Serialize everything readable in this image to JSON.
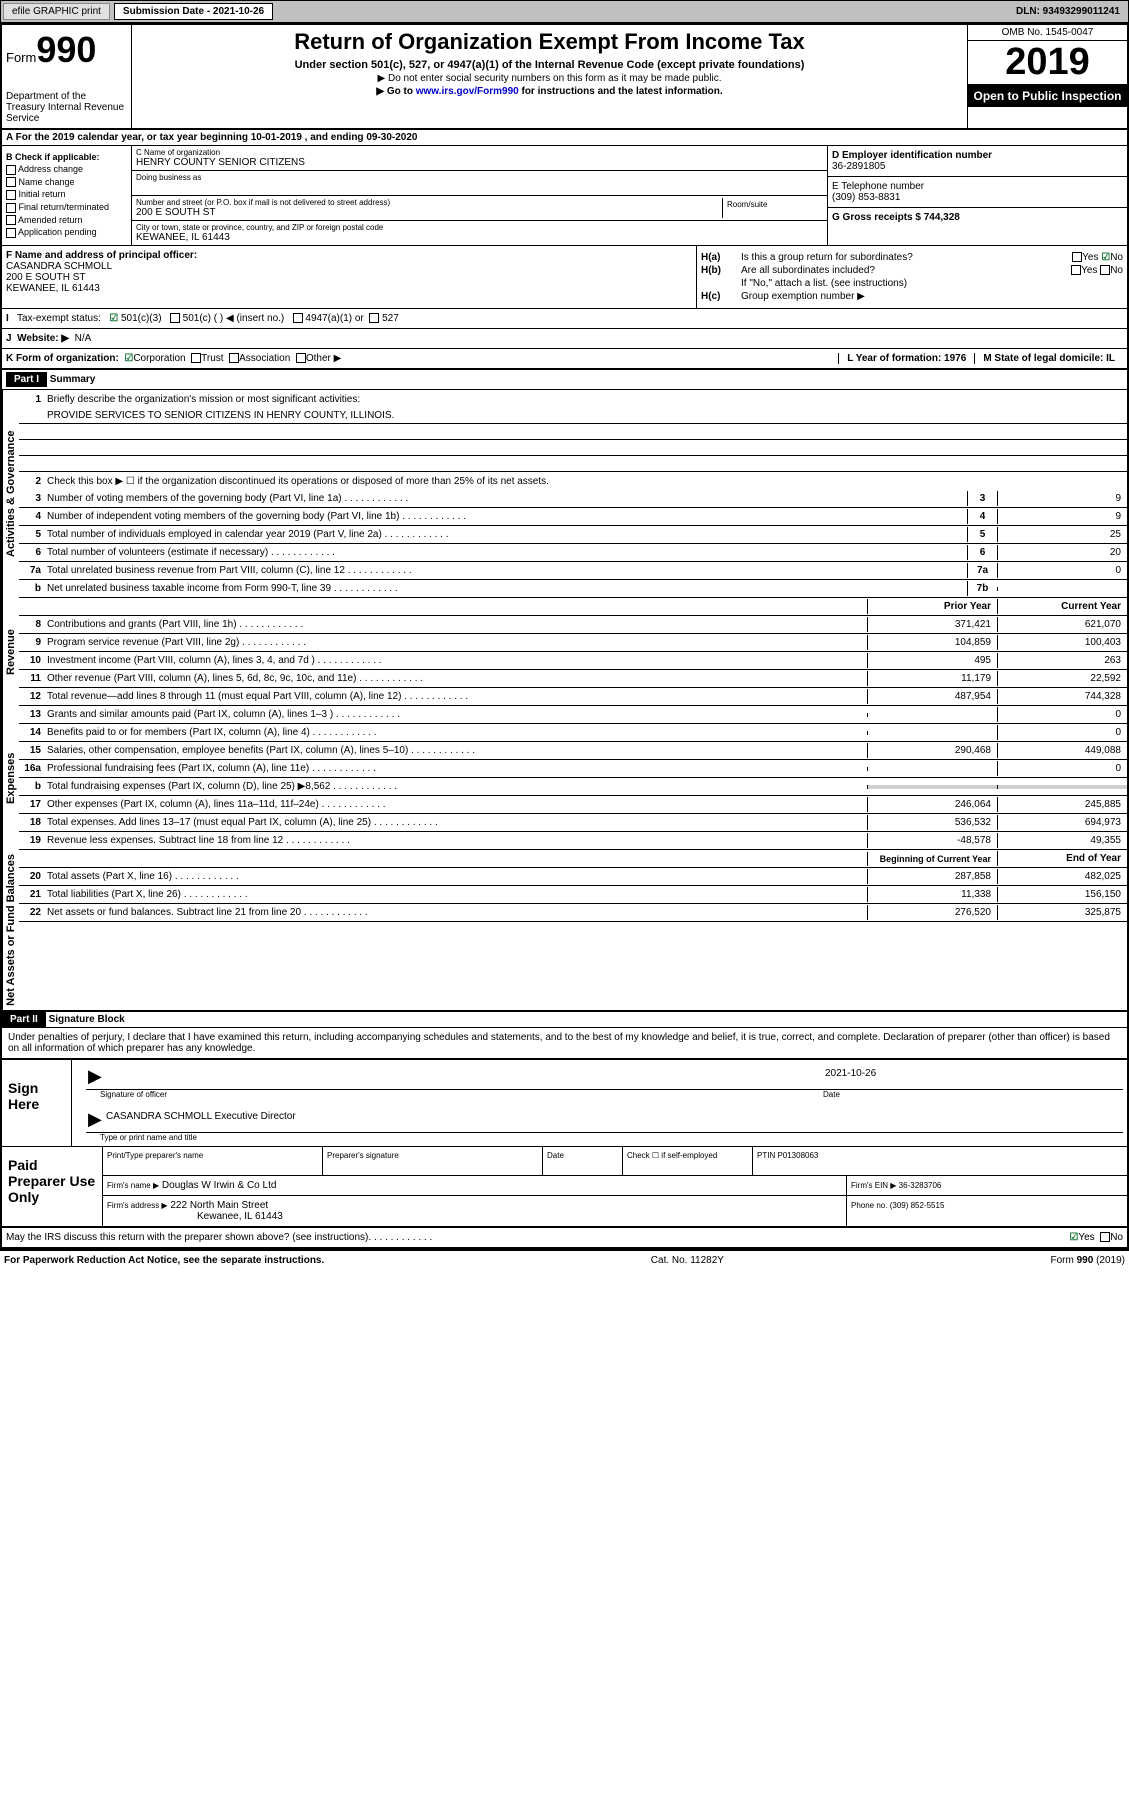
{
  "header": {
    "efile": "efile GRAPHIC print",
    "sub_label": "Submission Date - 2021-10-26",
    "dln": "DLN: 93493299011241"
  },
  "top": {
    "form_word": "Form",
    "form_num": "990",
    "dept": "Department of the Treasury Internal Revenue Service",
    "title": "Return of Organization Exempt From Income Tax",
    "subtitle": "Under section 501(c), 527, or 4947(a)(1) of the Internal Revenue Code (except private foundations)",
    "instr1": "▶ Do not enter social security numbers on this form as it may be made public.",
    "instr2_pre": "▶ Go to ",
    "instr2_link": "www.irs.gov/Form990",
    "instr2_post": " for instructions and the latest information.",
    "omb": "OMB No. 1545-0047",
    "year": "2019",
    "open": "Open to Public Inspection"
  },
  "rowA": "A For the 2019 calendar year, or tax year beginning 10-01-2019    , and ending 09-30-2020",
  "colB": {
    "label": "B Check if applicable:",
    "items": [
      "Address change",
      "Name change",
      "Initial return",
      "Final return/terminated",
      "Amended return",
      "Application pending"
    ]
  },
  "colC": {
    "name_label": "C Name of organization",
    "name": "HENRY COUNTY SENIOR CITIZENS",
    "dba_label": "Doing business as",
    "addr_label": "Number and street (or P.O. box if mail is not delivered to street address)",
    "addr": "200 E SOUTH ST",
    "room_label": "Room/suite",
    "city_label": "City or town, state or province, country, and ZIP or foreign postal code",
    "city": "KEWANEE, IL  61443"
  },
  "colD": {
    "label": "D Employer identification number",
    "val": "36-2891805"
  },
  "colE": {
    "label": "E Telephone number",
    "val": "(309) 853-8831"
  },
  "colG": {
    "label": "G Gross receipts $ 744,328"
  },
  "colF": {
    "label": "F  Name and address of principal officer:",
    "name": "CASANDRA SCHMOLL",
    "addr1": "200 E SOUTH ST",
    "addr2": "KEWANEE, IL  61443"
  },
  "colH": {
    "a_label": "H(a)",
    "a_text": "Is this a group return for subordinates?",
    "a_ans": "No",
    "b_label": "H(b)",
    "b_text": "Are all subordinates included?",
    "b_note": "If \"No,\" attach a list. (see instructions)",
    "c_label": "H(c)",
    "c_text": "Group exemption number ▶"
  },
  "rowI": {
    "label": "I",
    "text": "Tax-exempt status:",
    "opts": [
      "501(c)(3)",
      "501(c) (   ) ◀ (insert no.)",
      "4947(a)(1) or",
      "527"
    ]
  },
  "rowJ": {
    "label": "J",
    "text": "Website: ▶",
    "val": "N/A"
  },
  "rowK": {
    "text": "K Form of organization:",
    "opts": [
      "Corporation",
      "Trust",
      "Association",
      "Other ▶"
    ],
    "l": "L Year of formation: 1976",
    "m": "M State of legal domicile: IL"
  },
  "part1": {
    "header": "Part I",
    "title": "Summary",
    "side_ag": "Activities & Governance",
    "side_rev": "Revenue",
    "side_exp": "Expenses",
    "side_na": "Net Assets or Fund Balances",
    "l1": "Briefly describe the organization's mission or most significant activities:",
    "l1v": "PROVIDE SERVICES TO SENIOR CITIZENS IN HENRY COUNTY, ILLINOIS.",
    "l2": "Check this box ▶ ☐  if the organization discontinued its operations or disposed of more than 25% of its net assets.",
    "lines_ag": [
      {
        "n": "3",
        "d": "Number of voting members of the governing body (Part VI, line 1a)",
        "b": "3",
        "v": "9"
      },
      {
        "n": "4",
        "d": "Number of independent voting members of the governing body (Part VI, line 1b)",
        "b": "4",
        "v": "9"
      },
      {
        "n": "5",
        "d": "Total number of individuals employed in calendar year 2019 (Part V, line 2a)",
        "b": "5",
        "v": "25"
      },
      {
        "n": "6",
        "d": "Total number of volunteers (estimate if necessary)",
        "b": "6",
        "v": "20"
      },
      {
        "n": "7a",
        "d": "Total unrelated business revenue from Part VIII, column (C), line 12",
        "b": "7a",
        "v": "0"
      },
      {
        "n": "b",
        "d": "Net unrelated business taxable income from Form 990-T, line 39",
        "b": "7b",
        "v": ""
      }
    ],
    "col_hdr_prior": "Prior Year",
    "col_hdr_curr": "Current Year",
    "lines_rev": [
      {
        "n": "8",
        "d": "Contributions and grants (Part VIII, line 1h)",
        "p": "371,421",
        "c": "621,070"
      },
      {
        "n": "9",
        "d": "Program service revenue (Part VIII, line 2g)",
        "p": "104,859",
        "c": "100,403"
      },
      {
        "n": "10",
        "d": "Investment income (Part VIII, column (A), lines 3, 4, and 7d )",
        "p": "495",
        "c": "263"
      },
      {
        "n": "11",
        "d": "Other revenue (Part VIII, column (A), lines 5, 6d, 8c, 9c, 10c, and 11e)",
        "p": "11,179",
        "c": "22,592"
      },
      {
        "n": "12",
        "d": "Total revenue—add lines 8 through 11 (must equal Part VIII, column (A), line 12)",
        "p": "487,954",
        "c": "744,328"
      }
    ],
    "lines_exp": [
      {
        "n": "13",
        "d": "Grants and similar amounts paid (Part IX, column (A), lines 1–3 )",
        "p": "",
        "c": "0"
      },
      {
        "n": "14",
        "d": "Benefits paid to or for members (Part IX, column (A), line 4)",
        "p": "",
        "c": "0"
      },
      {
        "n": "15",
        "d": "Salaries, other compensation, employee benefits (Part IX, column (A), lines 5–10)",
        "p": "290,468",
        "c": "449,088"
      },
      {
        "n": "16a",
        "d": "Professional fundraising fees (Part IX, column (A), line 11e)",
        "p": "",
        "c": "0"
      },
      {
        "n": "b",
        "d": "Total fundraising expenses (Part IX, column (D), line 25) ▶8,562",
        "p": "GRAY",
        "c": "GRAY"
      },
      {
        "n": "17",
        "d": "Other expenses (Part IX, column (A), lines 11a–11d, 11f–24e)",
        "p": "246,064",
        "c": "245,885"
      },
      {
        "n": "18",
        "d": "Total expenses. Add lines 13–17 (must equal Part IX, column (A), line 25)",
        "p": "536,532",
        "c": "694,973"
      },
      {
        "n": "19",
        "d": "Revenue less expenses. Subtract line 18 from line 12",
        "p": "-48,578",
        "c": "49,355"
      }
    ],
    "col_hdr_beg": "Beginning of Current Year",
    "col_hdr_end": "End of Year",
    "lines_na": [
      {
        "n": "20",
        "d": "Total assets (Part X, line 16)",
        "p": "287,858",
        "c": "482,025"
      },
      {
        "n": "21",
        "d": "Total liabilities (Part X, line 26)",
        "p": "11,338",
        "c": "156,150"
      },
      {
        "n": "22",
        "d": "Net assets or fund balances. Subtract line 21 from line 20",
        "p": "276,520",
        "c": "325,875"
      }
    ]
  },
  "part2": {
    "header": "Part II",
    "title": "Signature Block",
    "text": "Under penalties of perjury, I declare that I have examined this return, including accompanying schedules and statements, and to the best of my knowledge and belief, it is true, correct, and complete. Declaration of preparer (other than officer) is based on all information of which preparer has any knowledge."
  },
  "sign": {
    "left": "Sign Here",
    "sig_label": "Signature of officer",
    "date_label": "Date",
    "date_val": "2021-10-26",
    "name": "CASANDRA SCHMOLL  Executive Director",
    "name_label": "Type or print name and title"
  },
  "prep": {
    "left": "Paid Preparer Use Only",
    "r1": [
      "Print/Type preparer's name",
      "Preparer's signature",
      "Date",
      "Check ☐ if self-employed",
      "PTIN P01308063"
    ],
    "r2_label": "Firm's name    ▶",
    "r2_val": "Douglas W Irwin & Co Ltd",
    "r2_ein": "Firm's EIN ▶ 36-3283706",
    "r3_label": "Firm's address ▶",
    "r3_val": "222 North Main Street",
    "r3_city": "Kewanee, IL  61443",
    "r3_phone": "Phone no. (309) 852-5515"
  },
  "footer": {
    "discuss": "May the IRS discuss this return with the preparer shown above? (see instructions)",
    "yes": "Yes",
    "no": "No",
    "pra": "For Paperwork Reduction Act Notice, see the separate instructions.",
    "cat": "Cat. No. 11282Y",
    "form": "Form 990 (2019)"
  }
}
